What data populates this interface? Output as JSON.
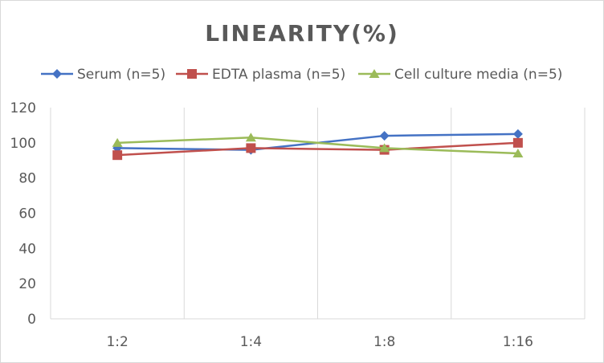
{
  "chart_data": {
    "type": "line",
    "title": "LINEARITY(%)",
    "xlabel": "",
    "ylabel": "",
    "categories": [
      "1:2",
      "1:4",
      "1:8",
      "1:16"
    ],
    "ylim": [
      0,
      120
    ],
    "yticks": [
      0,
      20,
      40,
      60,
      80,
      100,
      120
    ],
    "grid": "vertical",
    "legend": "top",
    "series": [
      {
        "name": "Serum (n=5)",
        "values": [
          97,
          96,
          104,
          105
        ],
        "color": "#4472c4",
        "marker": "diamond"
      },
      {
        "name": "EDTA plasma (n=5)",
        "values": [
          93,
          97,
          96,
          100
        ],
        "color": "#c0504d",
        "marker": "square"
      },
      {
        "name": "Cell culture media (n=5)",
        "values": [
          100,
          103,
          97,
          94
        ],
        "color": "#9bbb59",
        "marker": "triangle"
      }
    ]
  }
}
